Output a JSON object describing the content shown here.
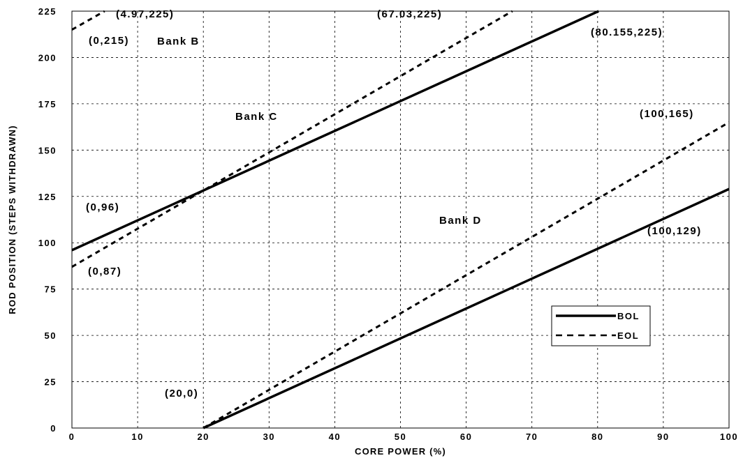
{
  "chart_data": {
    "type": "line",
    "xlabel": "CORE POWER (%)",
    "ylabel": "ROD POSITION (STEPS WITHDRAWN)",
    "xlim": [
      0,
      100
    ],
    "ylim": [
      0,
      225
    ],
    "xticks": [
      0,
      10,
      20,
      30,
      40,
      50,
      60,
      70,
      80,
      90,
      100
    ],
    "yticks": [
      0,
      25,
      50,
      75,
      100,
      125,
      150,
      175,
      200,
      225
    ],
    "grid": true,
    "legend_position": "lower-right",
    "series": [
      {
        "name": "BOL",
        "style": "solid",
        "segments": [
          {
            "bank": "Bank C",
            "points": [
              [
                0,
                96
              ],
              [
                80.155,
                225
              ]
            ]
          },
          {
            "bank": "Bank D",
            "points": [
              [
                20,
                0
              ],
              [
                100,
                129
              ]
            ]
          }
        ]
      },
      {
        "name": "EOL",
        "style": "dashed",
        "segments": [
          {
            "bank": "Bank B",
            "points": [
              [
                0,
                215
              ],
              [
                4.97,
                225
              ]
            ]
          },
          {
            "bank": "Bank C",
            "points": [
              [
                0,
                87
              ],
              [
                67.03,
                225
              ]
            ]
          },
          {
            "bank": "Bank D",
            "points": [
              [
                20,
                0
              ],
              [
                100,
                165
              ]
            ]
          }
        ]
      }
    ],
    "annotations": [
      {
        "text": "(4.97,225)",
        "x": 4.97,
        "y": 225
      },
      {
        "text": "(67.03,225)",
        "x": 67.03,
        "y": 225
      },
      {
        "text": "(0,215)",
        "x": 0,
        "y": 215
      },
      {
        "text": "Bank B",
        "x": 0,
        "y": 215
      },
      {
        "text": "(80.155,225)",
        "x": 80.155,
        "y": 225
      },
      {
        "text": "Bank C",
        "x": 30,
        "y": 168
      },
      {
        "text": "(100,165)",
        "x": 100,
        "y": 165
      },
      {
        "text": "(0,96)",
        "x": 0,
        "y": 96
      },
      {
        "text": "Bank D",
        "x": 60,
        "y": 110
      },
      {
        "text": "(100,129)",
        "x": 100,
        "y": 129
      },
      {
        "text": "(0,87)",
        "x": 0,
        "y": 87
      },
      {
        "text": "(20,0)",
        "x": 20,
        "y": 0
      }
    ]
  }
}
